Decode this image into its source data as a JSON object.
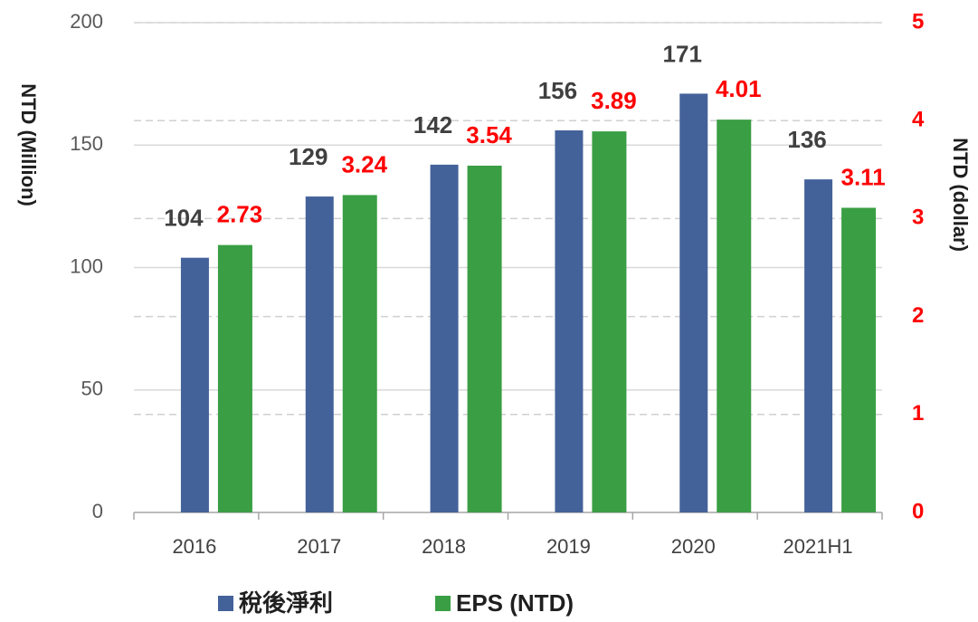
{
  "chart_data": {
    "type": "bar",
    "categories": [
      "2016",
      "2017",
      "2018",
      "2019",
      "2020",
      "2021H1"
    ],
    "series": [
      {
        "name": "稅後淨利",
        "color": "#44629a",
        "values": [
          104,
          129,
          142,
          156,
          171,
          136
        ]
      },
      {
        "name": "EPS (NTD)",
        "color": "#3a9e44",
        "axis": "y2",
        "values": [
          2.73,
          3.24,
          3.54,
          3.89,
          4.01,
          3.11
        ]
      }
    ],
    "ylabel": "NTD (Million)",
    "y2label": "NTD (dollar)",
    "ylim": [
      0,
      200
    ],
    "yticks": [
      0,
      50,
      100,
      150,
      200
    ],
    "y2lim": [
      0,
      5
    ],
    "y2ticks": [
      0,
      1,
      2,
      3,
      4,
      5
    ],
    "grid": true,
    "legend": "bottom"
  }
}
